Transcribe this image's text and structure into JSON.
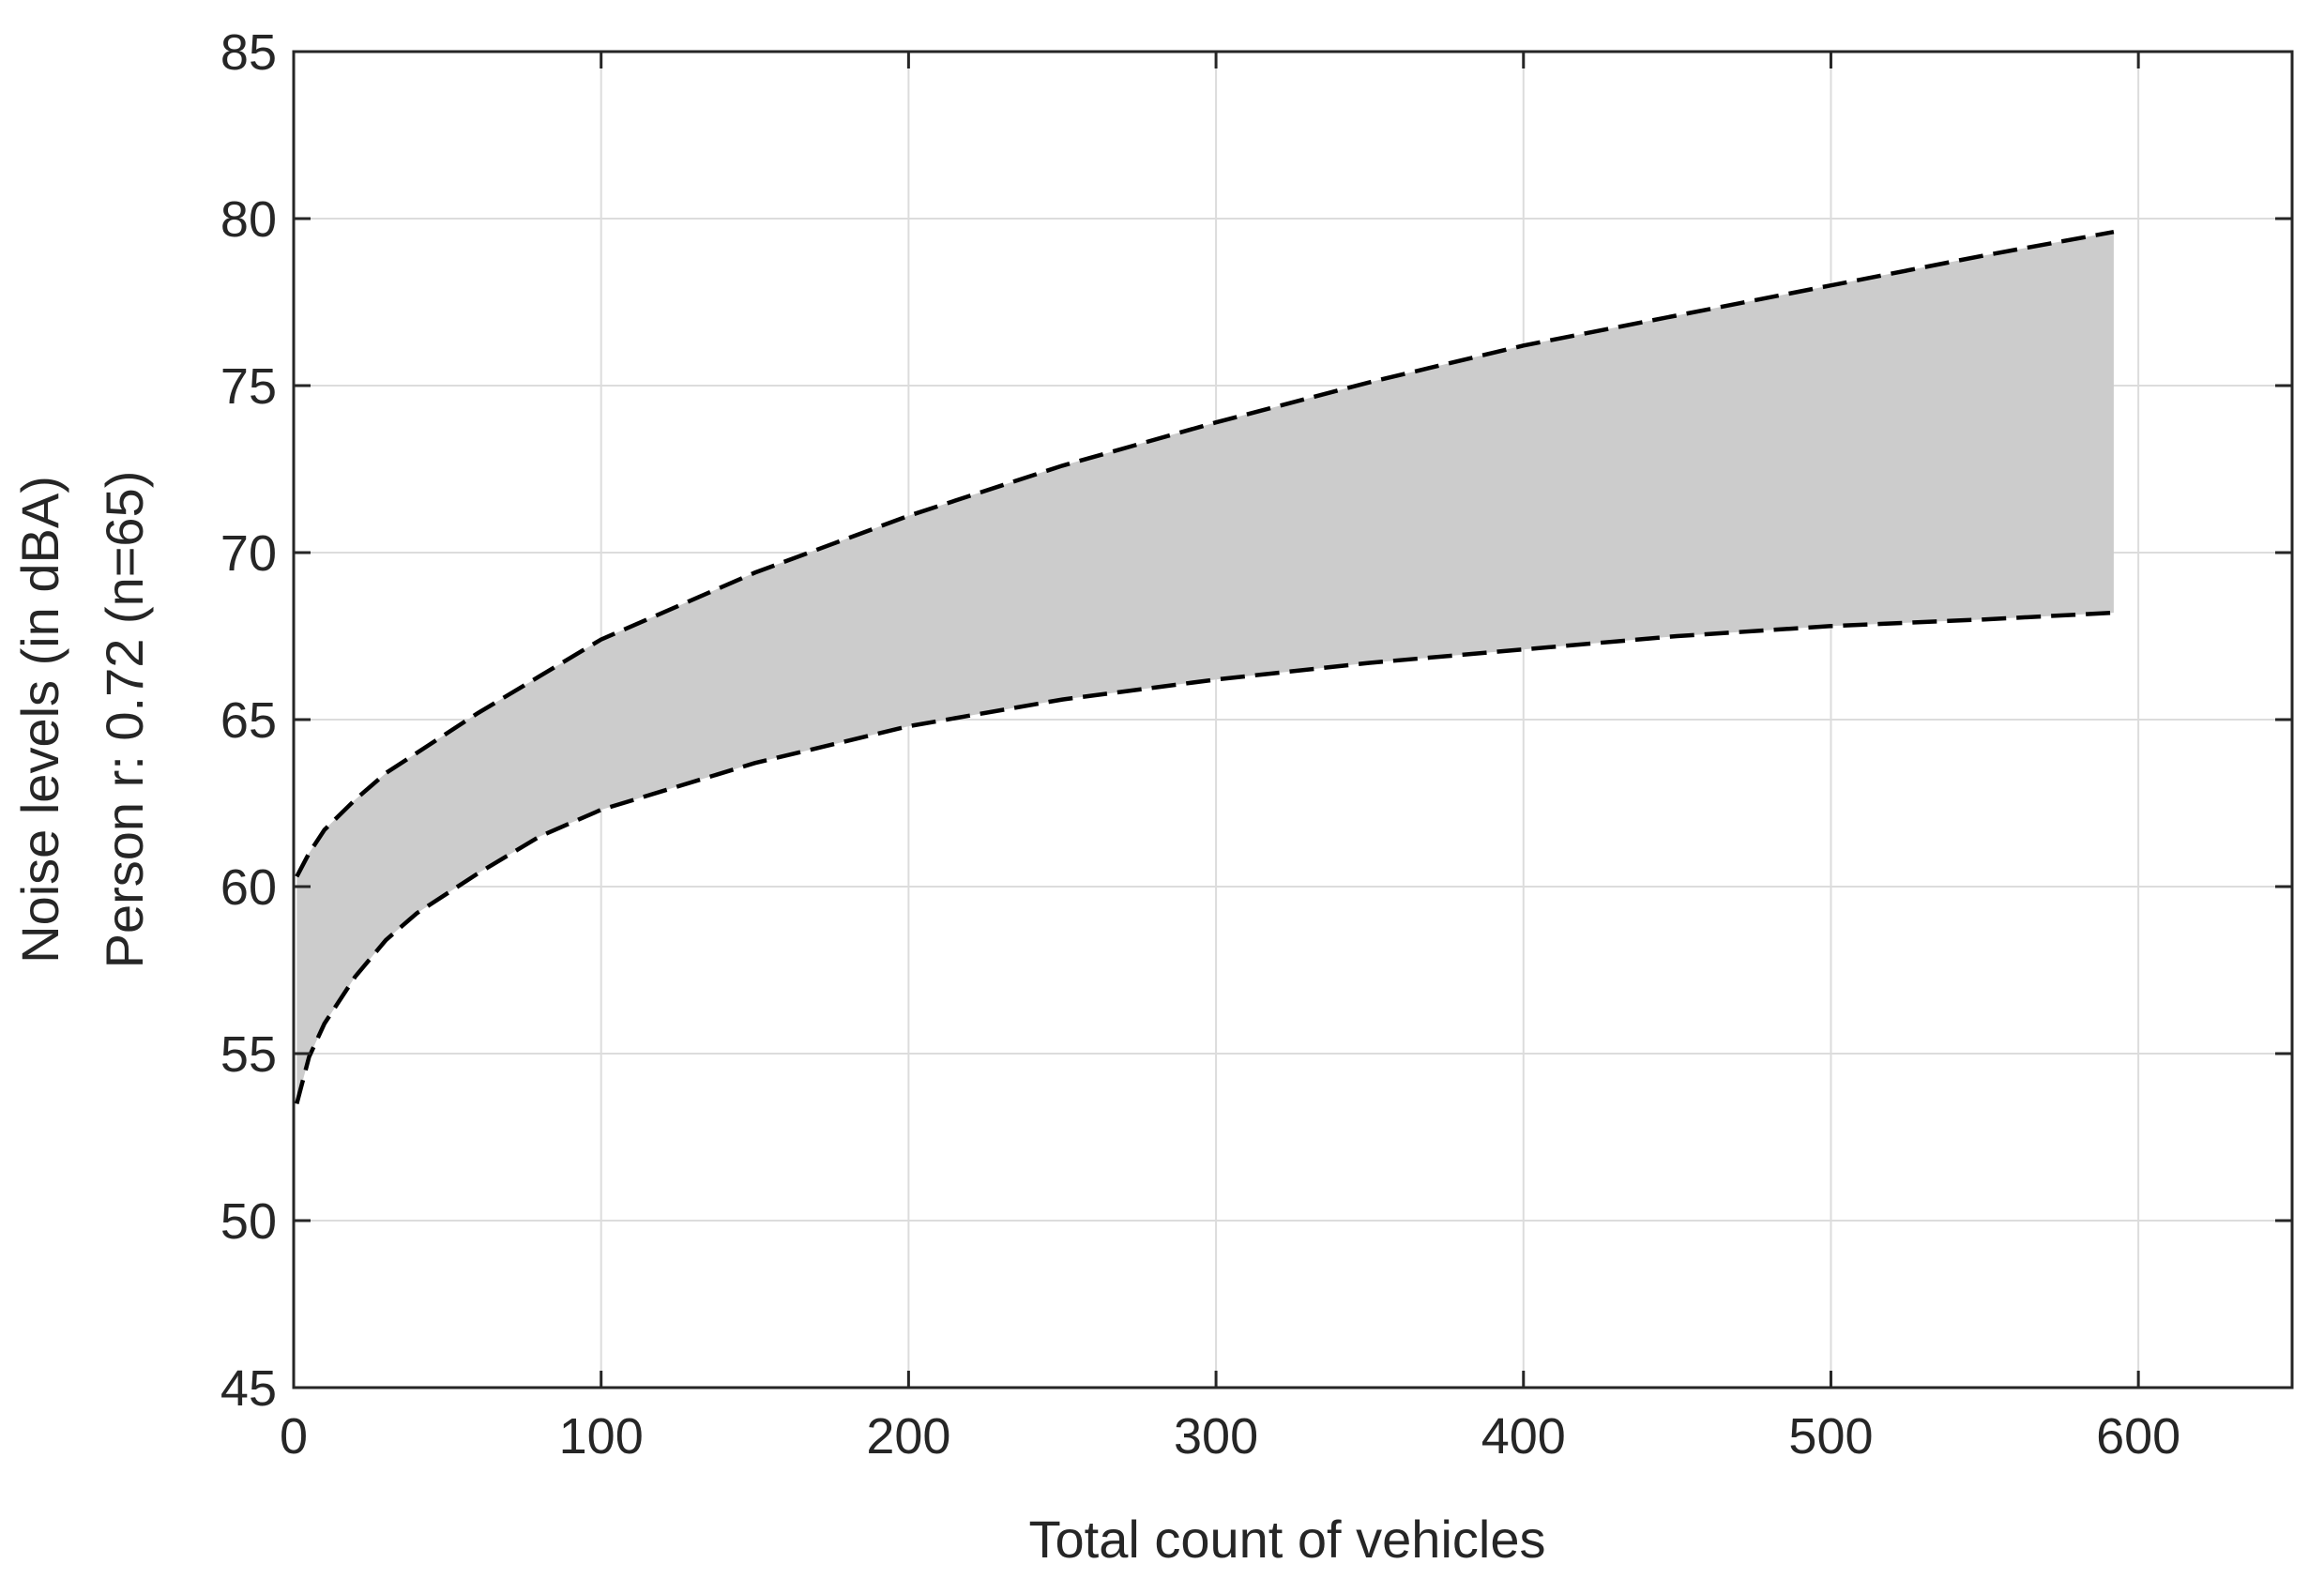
{
  "chart_data": {
    "type": "area",
    "title": "",
    "xlabel": "Total count of vehicles",
    "ylabel": [
      "Noise levels (in dBA)",
      "Person r: 0.72 (n=65)"
    ],
    "xlim": [
      0,
      650
    ],
    "ylim": [
      45,
      85
    ],
    "xticks": [
      0,
      100,
      200,
      300,
      400,
      500,
      600
    ],
    "yticks": [
      45,
      50,
      55,
      60,
      65,
      70,
      75,
      80,
      85
    ],
    "grid": true,
    "legend": "none",
    "colors": {
      "band": "#cccccc",
      "line": "#000000",
      "grid": "#dcdcdc",
      "axis": "#262626"
    },
    "series": [
      {
        "role": "upper-bound",
        "style": "dashed",
        "x": [
          1,
          5,
          10,
          20,
          30,
          40,
          60,
          80,
          100,
          150,
          200,
          250,
          300,
          350,
          400,
          450,
          500,
          550,
          592
        ],
        "y": [
          60.3,
          61.0,
          61.7,
          62.6,
          63.4,
          64.0,
          65.2,
          66.3,
          67.4,
          69.4,
          71.1,
          72.6,
          73.9,
          75.1,
          76.2,
          77.1,
          78.0,
          78.9,
          79.6
        ]
      },
      {
        "role": "lower-bound",
        "style": "dashed",
        "x": [
          1,
          5,
          10,
          20,
          30,
          40,
          60,
          80,
          100,
          150,
          200,
          250,
          300,
          350,
          400,
          450,
          500,
          550,
          592
        ],
        "y": [
          53.5,
          54.9,
          55.9,
          57.3,
          58.4,
          59.2,
          60.4,
          61.5,
          62.3,
          63.7,
          64.8,
          65.6,
          66.2,
          66.7,
          67.1,
          67.5,
          67.8,
          68.0,
          68.2
        ]
      }
    ]
  }
}
